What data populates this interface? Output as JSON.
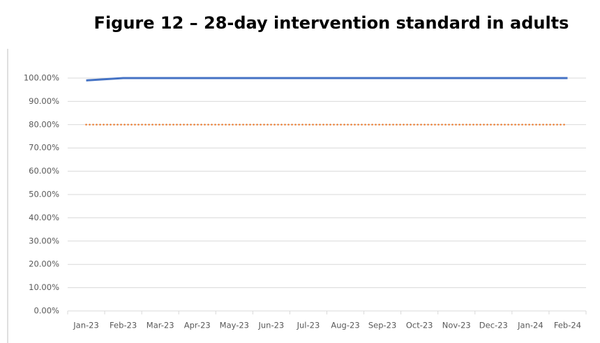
{
  "chart_data": {
    "type": "line",
    "title": "Figure 12 – 28-day intervention standard in adults",
    "categories": [
      "Jan-23",
      "Feb-23",
      "Mar-23",
      "Apr-23",
      "May-23",
      "Jun-23",
      "Jul-23",
      "Aug-23",
      "Sep-23",
      "Oct-23",
      "Nov-23",
      "Dec-23",
      "Jan-24",
      "Feb-24"
    ],
    "series": [
      {
        "color": "#4472c4",
        "style": "solid",
        "values": [
          99,
          100,
          100,
          100,
          100,
          100,
          100,
          100,
          100,
          100,
          100,
          100,
          100,
          100
        ]
      },
      {
        "color": "#ed7d31",
        "style": "dotted",
        "values": [
          80,
          80,
          80,
          80,
          80,
          80,
          80,
          80,
          80,
          80,
          80,
          80,
          80,
          80
        ]
      }
    ],
    "ylim": [
      0,
      100
    ],
    "yticks": [
      {
        "value": 0,
        "label": "0.00%"
      },
      {
        "value": 10,
        "label": "10.00%"
      },
      {
        "value": 20,
        "label": "20.00%"
      },
      {
        "value": 30,
        "label": "30.00%"
      },
      {
        "value": 40,
        "label": "40.00%"
      },
      {
        "value": 50,
        "label": "50.00%"
      },
      {
        "value": 60,
        "label": "60.00%"
      },
      {
        "value": 70,
        "label": "70.00%"
      },
      {
        "value": 80,
        "label": "80.00%"
      },
      {
        "value": 90,
        "label": "90.00%"
      },
      {
        "value": 100,
        "label": "100.00%"
      }
    ],
    "grid": true
  }
}
